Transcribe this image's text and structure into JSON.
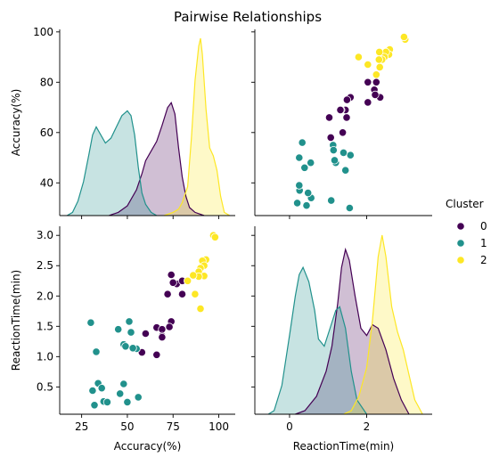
{
  "chart_data": {
    "type": "scatter",
    "subtype": "pairplot",
    "title": "Pairwise Relationships",
    "variables": [
      "Accuracy(%)",
      "ReactionTime(min)"
    ],
    "hue": "Cluster",
    "legend": {
      "title": "Cluster",
      "placement": "right",
      "entries": [
        {
          "label": "0",
          "color": "#440154"
        },
        {
          "label": "1",
          "color": "#21918c"
        },
        {
          "label": "2",
          "color": "#fde725"
        }
      ]
    },
    "axes": {
      "accuracy": {
        "label": "Accuracy(%)",
        "ylim": [
          27,
          101
        ],
        "xlim": [
          13,
          109
        ],
        "yticks": [
          40,
          60,
          80,
          100
        ],
        "xticks": [
          25,
          50,
          75,
          100
        ]
      },
      "reaction": {
        "label": "ReactionTime(min)",
        "ylim": [
          0.05,
          3.15
        ],
        "xlim": [
          -0.9,
          3.7
        ],
        "yticks": [
          0.5,
          1.0,
          1.5,
          2.0,
          2.5,
          3.0
        ],
        "xticks": [
          0,
          2
        ]
      }
    },
    "series": [
      {
        "name": "0",
        "color": "#440154",
        "points": [
          {
            "x": 74,
            "y": 2.35
          },
          {
            "x": 72,
            "y": 2.03
          },
          {
            "x": 80,
            "y": 2.03
          },
          {
            "x": 77,
            "y": 2.2
          },
          {
            "x": 80,
            "y": 2.25
          },
          {
            "x": 74,
            "y": 1.58
          },
          {
            "x": 73,
            "y": 1.49
          },
          {
            "x": 66,
            "y": 1.48
          },
          {
            "x": 69,
            "y": 1.45
          },
          {
            "x": 69,
            "y": 1.34
          },
          {
            "x": 69,
            "y": 1.32
          },
          {
            "x": 58,
            "y": 1.07
          },
          {
            "x": 66,
            "y": 1.03
          },
          {
            "x": 60,
            "y": 1.38
          },
          {
            "x": 75,
            "y": 2.22
          }
        ]
      },
      {
        "name": "1",
        "color": "#21918c",
        "points": [
          {
            "x": 30,
            "y": 1.56
          },
          {
            "x": 33,
            "y": 1.08
          },
          {
            "x": 31,
            "y": 0.44
          },
          {
            "x": 34,
            "y": 0.56
          },
          {
            "x": 36,
            "y": 0.48
          },
          {
            "x": 37,
            "y": 0.26
          },
          {
            "x": 32,
            "y": 0.2
          },
          {
            "x": 39,
            "y": 0.25
          },
          {
            "x": 45,
            "y": 1.45
          },
          {
            "x": 48,
            "y": 1.2
          },
          {
            "x": 51,
            "y": 1.58
          },
          {
            "x": 52,
            "y": 1.4
          },
          {
            "x": 49,
            "y": 1.17
          },
          {
            "x": 55,
            "y": 1.13
          },
          {
            "x": 46,
            "y": 0.39
          },
          {
            "x": 48,
            "y": 0.55
          },
          {
            "x": 50,
            "y": 0.25
          },
          {
            "x": 56,
            "y": 0.33
          },
          {
            "x": 53,
            "y": 1.14
          }
        ]
      },
      {
        "name": "2",
        "color": "#fde725",
        "points": [
          {
            "x": 97,
            "y": 3.0
          },
          {
            "x": 98,
            "y": 2.97
          },
          {
            "x": 93,
            "y": 2.6
          },
          {
            "x": 91,
            "y": 2.58
          },
          {
            "x": 92,
            "y": 2.5
          },
          {
            "x": 90,
            "y": 2.46
          },
          {
            "x": 89,
            "y": 2.4
          },
          {
            "x": 83,
            "y": 2.25
          },
          {
            "x": 92,
            "y": 2.33
          },
          {
            "x": 87,
            "y": 2.03
          },
          {
            "x": 89,
            "y": 2.32
          },
          {
            "x": 90,
            "y": 1.79
          },
          {
            "x": 86,
            "y": 2.34
          }
        ]
      }
    ],
    "density": {
      "accuracy": [
        {
          "name": "0",
          "color": "#440154",
          "curve": [
            [
              40,
              0
            ],
            [
              45,
              0.2
            ],
            [
              50,
              0.6
            ],
            [
              55,
              1.6
            ],
            [
              58,
              2.6
            ],
            [
              60,
              3.4
            ],
            [
              63,
              4.0
            ],
            [
              66,
              4.6
            ],
            [
              69,
              5.6
            ],
            [
              72,
              6.7
            ],
            [
              74,
              7.0
            ],
            [
              76,
              6.3
            ],
            [
              78,
              4.2
            ],
            [
              80,
              2.4
            ],
            [
              82,
              1.2
            ],
            [
              84,
              0.5
            ],
            [
              87,
              0.2
            ],
            [
              92,
              0
            ]
          ]
        },
        {
          "name": "1",
          "color": "#21918c",
          "curve": [
            [
              17,
              0
            ],
            [
              20,
              0.2
            ],
            [
              23,
              0.9
            ],
            [
              26,
              2.1
            ],
            [
              29,
              3.8
            ],
            [
              31,
              5.0
            ],
            [
              33,
              5.5
            ],
            [
              35,
              5.1
            ],
            [
              38,
              4.5
            ],
            [
              41,
              4.8
            ],
            [
              44,
              5.5
            ],
            [
              47,
              6.2
            ],
            [
              50,
              6.5
            ],
            [
              52,
              6.2
            ],
            [
              54,
              5.0
            ],
            [
              56,
              3.0
            ],
            [
              58,
              1.4
            ],
            [
              60,
              0.7
            ],
            [
              63,
              0.2
            ],
            [
              66,
              0
            ]
          ]
        },
        {
          "name": "2",
          "color": "#fde725",
          "curve": [
            [
              70,
              0
            ],
            [
              75,
              0.2
            ],
            [
              78,
              0.4
            ],
            [
              80,
              0.8
            ],
            [
              83,
              1.8
            ],
            [
              85,
              4.8
            ],
            [
              87,
              8.4
            ],
            [
              89,
              10.5
            ],
            [
              90,
              11.0
            ],
            [
              91,
              10.0
            ],
            [
              93,
              6.6
            ],
            [
              95,
              4.2
            ],
            [
              97,
              3.7
            ],
            [
              99,
              2.8
            ],
            [
              101,
              1.2
            ],
            [
              103,
              0.2
            ],
            [
              106,
              0
            ]
          ]
        }
      ],
      "reaction": [
        {
          "name": "0",
          "color": "#440154",
          "curve": [
            [
              0.15,
              0
            ],
            [
              0.4,
              0.05
            ],
            [
              0.7,
              0.25
            ],
            [
              0.95,
              0.6
            ],
            [
              1.1,
              0.95
            ],
            [
              1.25,
              1.55
            ],
            [
              1.35,
              2.05
            ],
            [
              1.45,
              2.3
            ],
            [
              1.55,
              2.15
            ],
            [
              1.7,
              1.65
            ],
            [
              1.85,
              1.2
            ],
            [
              2.0,
              1.1
            ],
            [
              2.15,
              1.25
            ],
            [
              2.3,
              1.2
            ],
            [
              2.5,
              0.9
            ],
            [
              2.7,
              0.5
            ],
            [
              2.9,
              0.2
            ],
            [
              3.1,
              0
            ]
          ]
        },
        {
          "name": "1",
          "color": "#21918c",
          "curve": [
            [
              -0.55,
              0
            ],
            [
              -0.4,
              0.05
            ],
            [
              -0.2,
              0.4
            ],
            [
              0,
              1.1
            ],
            [
              0.15,
              1.65
            ],
            [
              0.25,
              1.95
            ],
            [
              0.35,
              2.05
            ],
            [
              0.5,
              1.85
            ],
            [
              0.65,
              1.45
            ],
            [
              0.75,
              1.05
            ],
            [
              0.9,
              0.95
            ],
            [
              1.05,
              1.2
            ],
            [
              1.2,
              1.45
            ],
            [
              1.3,
              1.5
            ],
            [
              1.45,
              1.2
            ],
            [
              1.6,
              0.6
            ],
            [
              1.75,
              0.2
            ],
            [
              2.0,
              0
            ]
          ]
        },
        {
          "name": "2",
          "color": "#fde725",
          "curve": [
            [
              1.4,
              0
            ],
            [
              1.6,
              0.05
            ],
            [
              1.8,
              0.25
            ],
            [
              2.0,
              0.65
            ],
            [
              2.15,
              1.3
            ],
            [
              2.3,
              2.2
            ],
            [
              2.4,
              2.5
            ],
            [
              2.5,
              2.2
            ],
            [
              2.65,
              1.5
            ],
            [
              2.8,
              1.15
            ],
            [
              2.95,
              0.9
            ],
            [
              3.1,
              0.55
            ],
            [
              3.25,
              0.2
            ],
            [
              3.45,
              0
            ]
          ]
        }
      ]
    }
  }
}
